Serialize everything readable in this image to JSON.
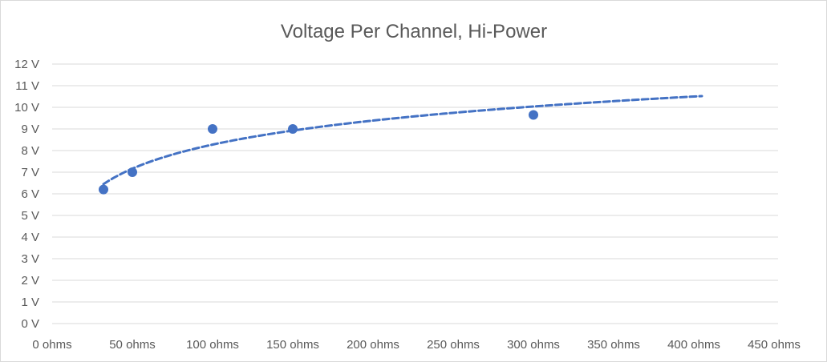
{
  "chart_data": {
    "type": "scatter",
    "title": "Voltage Per Channel, Hi-Power",
    "xlabel": "",
    "ylabel": "",
    "xlim": [
      0,
      450
    ],
    "ylim": [
      0,
      12
    ],
    "x_ticks": [
      {
        "value": 0,
        "label": "0 ohms"
      },
      {
        "value": 50,
        "label": "50 ohms"
      },
      {
        "value": 100,
        "label": "100 ohms"
      },
      {
        "value": 150,
        "label": "150 ohms"
      },
      {
        "value": 200,
        "label": "200 ohms"
      },
      {
        "value": 250,
        "label": "250 ohms"
      },
      {
        "value": 300,
        "label": "300 ohms"
      },
      {
        "value": 350,
        "label": "350 ohms"
      },
      {
        "value": 400,
        "label": "400 ohms"
      },
      {
        "value": 450,
        "label": "450 ohms"
      }
    ],
    "y_ticks": [
      {
        "value": 0,
        "label": "0 V"
      },
      {
        "value": 1,
        "label": "1 V"
      },
      {
        "value": 2,
        "label": "2 V"
      },
      {
        "value": 3,
        "label": "3 V"
      },
      {
        "value": 4,
        "label": "4 V"
      },
      {
        "value": 5,
        "label": "5 V"
      },
      {
        "value": 6,
        "label": "6 V"
      },
      {
        "value": 7,
        "label": "7 V"
      },
      {
        "value": 8,
        "label": "8 V"
      },
      {
        "value": 9,
        "label": "9 V"
      },
      {
        "value": 10,
        "label": "10 V"
      },
      {
        "value": 11,
        "label": "11 V"
      },
      {
        "value": 12,
        "label": "12 V"
      }
    ],
    "grid": "horizontal",
    "legend": "none",
    "series": [
      {
        "points": [
          {
            "x": 32,
            "y": 6.2
          },
          {
            "x": 50,
            "y": 7.0
          },
          {
            "x": 100,
            "y": 9.0
          },
          {
            "x": 150,
            "y": 9.0
          },
          {
            "x": 300,
            "y": 9.65
          }
        ],
        "color": "#4472c4",
        "trendline": {
          "type": "logarithmic",
          "style": "dashed",
          "x_range": [
            32,
            405
          ]
        }
      }
    ]
  }
}
